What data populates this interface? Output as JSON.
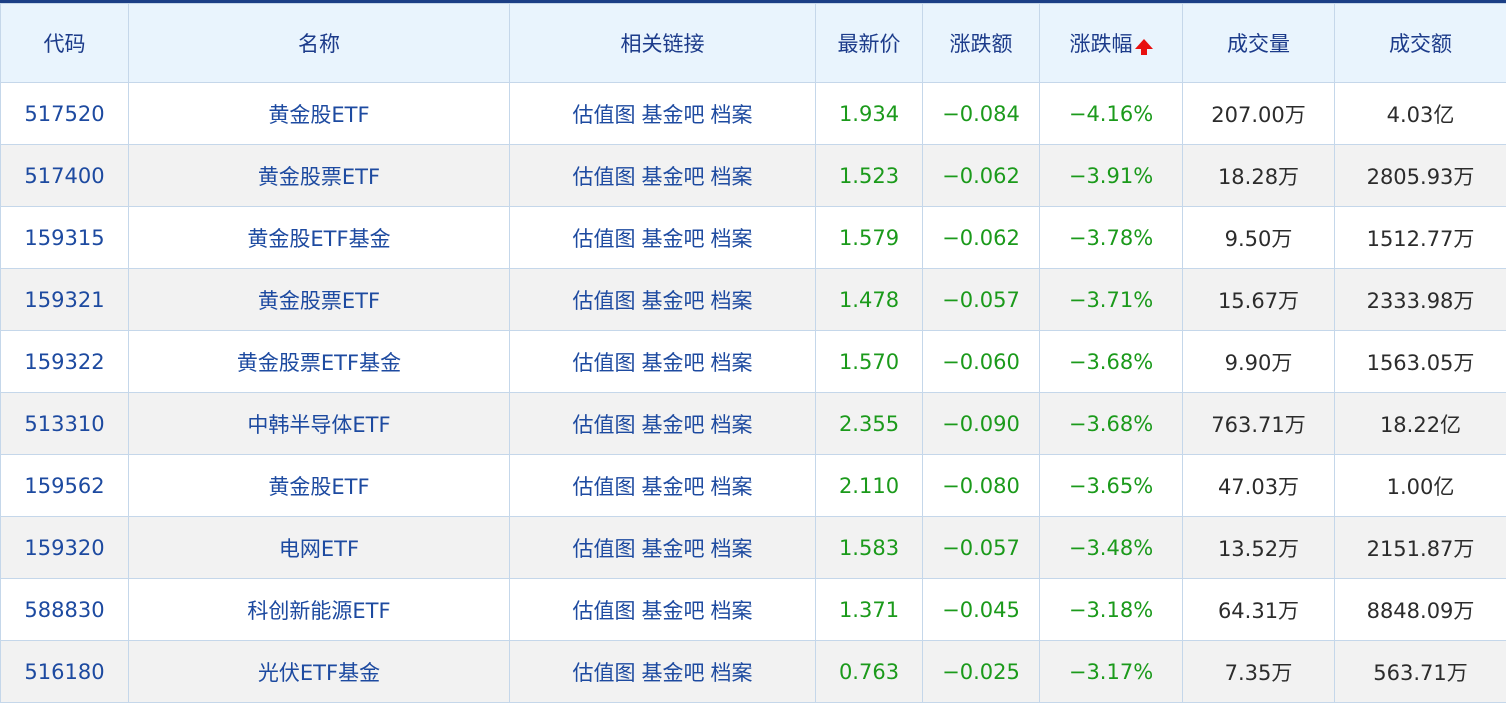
{
  "headers": [
    "代码",
    "名称",
    "相关链接",
    "最新价",
    "涨跌额",
    "涨跌幅",
    "成交量",
    "成交额"
  ],
  "sort": {
    "column": "涨跌幅",
    "icon": "sort-arrow-up-icon",
    "color": "#e81010"
  },
  "links": [
    "估值图",
    "基金吧",
    "档案"
  ],
  "colors": {
    "down": "#1b9a1b",
    "link": "#1d4aa0",
    "header_bg": "#e9f4fd"
  },
  "rows": [
    {
      "code": "517520",
      "name": "黄金股ETF",
      "price": "1.934",
      "change": "−0.084",
      "pct": "−4.16%",
      "volume": "207.00万",
      "amount": "4.03亿"
    },
    {
      "code": "517400",
      "name": "黄金股票ETF",
      "price": "1.523",
      "change": "−0.062",
      "pct": "−3.91%",
      "volume": "18.28万",
      "amount": "2805.93万"
    },
    {
      "code": "159315",
      "name": "黄金股ETF基金",
      "price": "1.579",
      "change": "−0.062",
      "pct": "−3.78%",
      "volume": "9.50万",
      "amount": "1512.77万"
    },
    {
      "code": "159321",
      "name": "黄金股票ETF",
      "price": "1.478",
      "change": "−0.057",
      "pct": "−3.71%",
      "volume": "15.67万",
      "amount": "2333.98万"
    },
    {
      "code": "159322",
      "name": "黄金股票ETF基金",
      "price": "1.570",
      "change": "−0.060",
      "pct": "−3.68%",
      "volume": "9.90万",
      "amount": "1563.05万"
    },
    {
      "code": "513310",
      "name": "中韩半导体ETF",
      "price": "2.355",
      "change": "−0.090",
      "pct": "−3.68%",
      "volume": "763.71万",
      "amount": "18.22亿"
    },
    {
      "code": "159562",
      "name": "黄金股ETF",
      "price": "2.110",
      "change": "−0.080",
      "pct": "−3.65%",
      "volume": "47.03万",
      "amount": "1.00亿"
    },
    {
      "code": "159320",
      "name": "电网ETF",
      "price": "1.583",
      "change": "−0.057",
      "pct": "−3.48%",
      "volume": "13.52万",
      "amount": "2151.87万"
    },
    {
      "code": "588830",
      "name": "科创新能源ETF",
      "price": "1.371",
      "change": "−0.045",
      "pct": "−3.18%",
      "volume": "64.31万",
      "amount": "8848.09万"
    },
    {
      "code": "516180",
      "name": "光伏ETF基金",
      "price": "0.763",
      "change": "−0.025",
      "pct": "−3.17%",
      "volume": "7.35万",
      "amount": "563.71万"
    }
  ]
}
